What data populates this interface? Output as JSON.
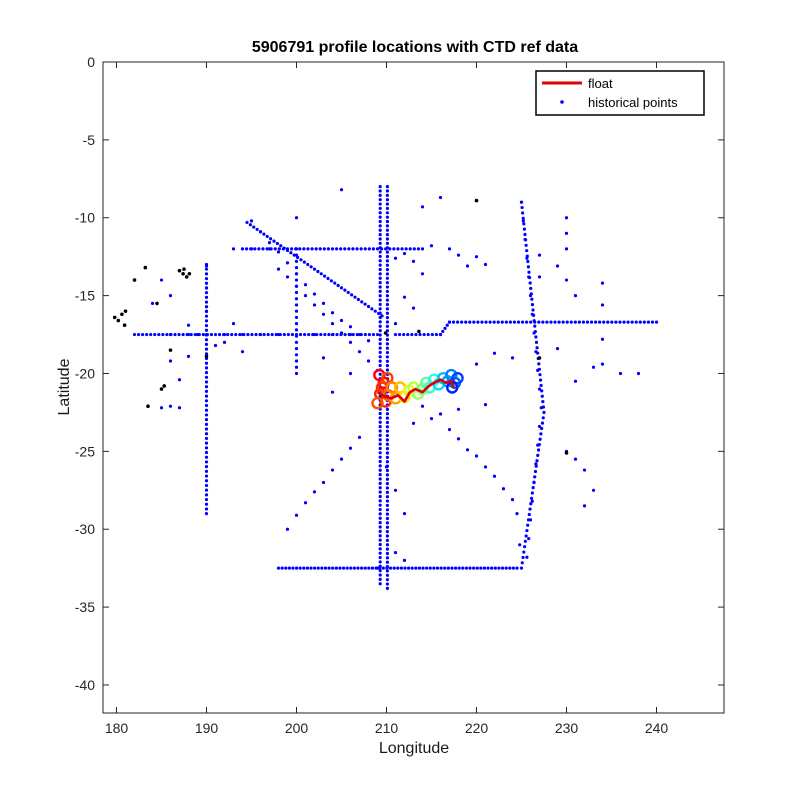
{
  "chart_data": {
    "type": "scatter",
    "title": "5906791 profile locations with CTD ref data",
    "xlabel": "Longitude",
    "ylabel": "Latitude",
    "xlim": [
      178.5,
      247.5
    ],
    "ylim": [
      -41.8,
      0
    ],
    "xticks": [
      180,
      190,
      200,
      210,
      220,
      230,
      240
    ],
    "yticks": [
      0,
      -5,
      -10,
      -15,
      -20,
      -25,
      -30,
      -35,
      -40
    ],
    "legend_position": "top-right",
    "grid": false,
    "colors": {
      "float": "#e00000",
      "historical": "#0000ff",
      "coast": "#000000",
      "axes": "#262626"
    },
    "legend": [
      {
        "label": "float",
        "style": "line",
        "color": "#e00000"
      },
      {
        "label": "historical points",
        "style": "dots",
        "color": "#0000ff"
      }
    ],
    "float_track": [
      [
        209.0,
        -21.2
      ],
      [
        209.8,
        -21.5
      ],
      [
        210.5,
        -21.6
      ],
      [
        211.3,
        -21.4
      ],
      [
        212.0,
        -21.8
      ],
      [
        212.6,
        -21.2
      ],
      [
        213.2,
        -21.0
      ],
      [
        214.0,
        -21.2
      ],
      [
        214.7,
        -20.8
      ],
      [
        215.3,
        -20.6
      ],
      [
        216.0,
        -20.4
      ],
      [
        216.6,
        -20.6
      ],
      [
        217.2,
        -20.5
      ],
      [
        217.5,
        -20.9
      ]
    ],
    "float_profiles": [
      {
        "x": 209.2,
        "y": -20.1,
        "c": "#ff0000"
      },
      {
        "x": 209.7,
        "y": -20.6,
        "c": "#ff0000"
      },
      {
        "x": 209.3,
        "y": -21.3,
        "c": "#ff2000"
      },
      {
        "x": 209.9,
        "y": -21.8,
        "c": "#ff2000"
      },
      {
        "x": 209.5,
        "y": -20.9,
        "c": "#ff3000"
      },
      {
        "x": 210.1,
        "y": -20.3,
        "c": "#ff4000"
      },
      {
        "x": 209.0,
        "y": -21.9,
        "c": "#ff5000"
      },
      {
        "x": 210.2,
        "y": -21.4,
        "c": "#ff6000"
      },
      {
        "x": 210.6,
        "y": -20.9,
        "c": "#ff8000"
      },
      {
        "x": 211.0,
        "y": -21.6,
        "c": "#ffa000"
      },
      {
        "x": 211.5,
        "y": -20.9,
        "c": "#ffc000"
      },
      {
        "x": 212.0,
        "y": -21.5,
        "c": "#ffe000"
      },
      {
        "x": 212.5,
        "y": -21.1,
        "c": "#e0ff20"
      },
      {
        "x": 213.0,
        "y": -20.9,
        "c": "#c0ff40"
      },
      {
        "x": 213.5,
        "y": -21.3,
        "c": "#a0ff60"
      },
      {
        "x": 214.0,
        "y": -21.0,
        "c": "#80ff80"
      },
      {
        "x": 214.4,
        "y": -20.6,
        "c": "#60ffa0"
      },
      {
        "x": 214.8,
        "y": -20.9,
        "c": "#40ffc0"
      },
      {
        "x": 215.3,
        "y": -20.4,
        "c": "#20ffe0"
      },
      {
        "x": 215.8,
        "y": -20.7,
        "c": "#00e0ff"
      },
      {
        "x": 216.3,
        "y": -20.3,
        "c": "#00c0ff"
      },
      {
        "x": 216.8,
        "y": -20.5,
        "c": "#00a0ff"
      },
      {
        "x": 217.2,
        "y": -20.1,
        "c": "#0080ff"
      },
      {
        "x": 217.6,
        "y": -20.6,
        "c": "#0060ff"
      },
      {
        "x": 217.9,
        "y": -20.3,
        "c": "#0040ff"
      },
      {
        "x": 217.3,
        "y": -20.9,
        "c": "#0020ff"
      }
    ],
    "historical_points": [
      [
        205,
        -8.2
      ],
      [
        220,
        -8.9
      ],
      [
        216,
        -8.7
      ],
      [
        214,
        -9.3
      ],
      [
        230,
        -10
      ],
      [
        200,
        -10
      ],
      [
        198,
        -13.3
      ],
      [
        199,
        -13.8
      ],
      [
        200,
        -14.4
      ],
      [
        201,
        -15.0
      ],
      [
        202,
        -15.6
      ],
      [
        203,
        -16.2
      ],
      [
        204,
        -16.8
      ],
      [
        205,
        -17.4
      ],
      [
        206,
        -18.0
      ],
      [
        207,
        -18.6
      ],
      [
        208,
        -19.2
      ],
      [
        209,
        -19.8
      ],
      [
        195,
        -10.2
      ],
      [
        196,
        -10.9
      ],
      [
        197,
        -11.6
      ],
      [
        198,
        -12.2
      ],
      [
        199,
        -12.9
      ],
      [
        200,
        -13.6
      ],
      [
        201,
        -14.3
      ],
      [
        202,
        -14.9
      ],
      [
        203,
        -15.5
      ],
      [
        204,
        -16.1
      ],
      [
        205,
        -16.6
      ],
      [
        206,
        -17.0
      ],
      [
        207,
        -17.5
      ],
      [
        208,
        -17.9
      ],
      [
        211,
        -12.6
      ],
      [
        212,
        -12.3
      ],
      [
        213,
        -12.8
      ],
      [
        214,
        -13.6
      ],
      [
        215,
        -11.8
      ],
      [
        212,
        -15.1
      ],
      [
        213,
        -15.8
      ],
      [
        211,
        -16.8
      ],
      [
        217,
        -12.0
      ],
      [
        218,
        -12.4
      ],
      [
        219,
        -13.1
      ],
      [
        225,
        -9.0
      ],
      [
        225.2,
        -10.2
      ],
      [
        225.4,
        -11.4
      ],
      [
        225.6,
        -12.6
      ],
      [
        225.8,
        -13.8
      ],
      [
        226.0,
        -15.0
      ],
      [
        226.2,
        -16.2
      ],
      [
        226.4,
        -17.4
      ],
      [
        226.6,
        -18.6
      ],
      [
        226.8,
        -19.8
      ],
      [
        227.0,
        -21.0
      ],
      [
        227.2,
        -22.2
      ],
      [
        227.0,
        -23.4
      ],
      [
        226.8,
        -24.6
      ],
      [
        226.6,
        -25.8
      ],
      [
        226.4,
        -27.0
      ],
      [
        226.2,
        -28.2
      ],
      [
        226.0,
        -29.4
      ],
      [
        225.8,
        -30.6
      ],
      [
        225.6,
        -31.8
      ],
      [
        230,
        -11.0
      ],
      [
        230,
        -12.0
      ],
      [
        229,
        -13.1
      ],
      [
        230,
        -14.0
      ],
      [
        231,
        -15.0
      ],
      [
        234,
        -14.2
      ],
      [
        234,
        -15.6
      ],
      [
        234,
        -17.8
      ],
      [
        234,
        -19.4
      ],
      [
        236,
        -20.0
      ],
      [
        238,
        -20.0
      ],
      [
        233,
        -19.6
      ],
      [
        220,
        -12.5
      ],
      [
        221,
        -13.0
      ],
      [
        227,
        -12.4
      ],
      [
        227,
        -13.8
      ],
      [
        229,
        -18.4
      ],
      [
        231,
        -20.5
      ],
      [
        224,
        -19.0
      ],
      [
        222,
        -18.7
      ],
      [
        220,
        -19.4
      ],
      [
        221,
        -22.0
      ],
      [
        218,
        -22.3
      ],
      [
        216,
        -22.6
      ],
      [
        215,
        -22.9
      ],
      [
        214,
        -22.1
      ],
      [
        213,
        -23.2
      ],
      [
        217,
        -23.6
      ],
      [
        218,
        -24.2
      ],
      [
        219,
        -24.9
      ],
      [
        220,
        -25.3
      ],
      [
        221,
        -26.0
      ],
      [
        222,
        -26.6
      ],
      [
        223,
        -27.4
      ],
      [
        224,
        -28.1
      ],
      [
        224.5,
        -29.0
      ],
      [
        224.8,
        -31.0
      ],
      [
        230,
        -25.0
      ],
      [
        231,
        -25.5
      ],
      [
        232,
        -26.2
      ],
      [
        233,
        -27.5
      ],
      [
        232,
        -28.5
      ],
      [
        207,
        -24.1
      ],
      [
        206,
        -24.8
      ],
      [
        205,
        -25.5
      ],
      [
        204,
        -26.2
      ],
      [
        203,
        -27.0
      ],
      [
        202,
        -27.6
      ],
      [
        201,
        -28.3
      ],
      [
        200,
        -29.1
      ],
      [
        199,
        -30.0
      ],
      [
        210,
        -26.0
      ],
      [
        211,
        -27.5
      ],
      [
        212,
        -29.0
      ],
      [
        211,
        -31.5
      ],
      [
        209,
        -32.5
      ],
      [
        212,
        -32.0
      ],
      [
        190,
        -13.1
      ],
      [
        190,
        -14.5
      ],
      [
        190,
        -16.0
      ],
      [
        190,
        -17.5
      ],
      [
        188,
        -17.5
      ],
      [
        186,
        -17.5
      ],
      [
        192,
        -17.5
      ],
      [
        194,
        -17.5
      ],
      [
        196,
        -17.5
      ],
      [
        198,
        -17.5
      ],
      [
        202,
        -17.5
      ],
      [
        204,
        -17.5
      ],
      [
        206,
        -17.5
      ],
      [
        193,
        -16.8
      ],
      [
        192,
        -18.0
      ],
      [
        194,
        -18.6
      ],
      [
        186,
        -15.0
      ],
      [
        184,
        -15.5
      ],
      [
        186,
        -19.2
      ],
      [
        187,
        -20.4
      ],
      [
        186,
        -22.1
      ],
      [
        185,
        -22.2
      ],
      [
        187,
        -22.2
      ],
      [
        188,
        -16.9
      ],
      [
        191,
        -18.2
      ],
      [
        193,
        -12.0
      ],
      [
        195,
        -12.0
      ],
      [
        197,
        -12.0
      ],
      [
        185,
        -14.0
      ],
      [
        189,
        -17.5
      ],
      [
        204,
        -21.2
      ],
      [
        206,
        -20.0
      ],
      [
        203,
        -19.0
      ],
      [
        188,
        -18.9
      ]
    ],
    "coast_points": [
      [
        180.6,
        -16.2
      ],
      [
        180.2,
        -16.6
      ],
      [
        180.9,
        -16.9
      ],
      [
        179.8,
        -16.4
      ],
      [
        181.0,
        -16.0
      ],
      [
        182.0,
        -14.0
      ],
      [
        183.2,
        -13.2
      ],
      [
        184.5,
        -15.5
      ],
      [
        185.0,
        -21.0
      ],
      [
        185.3,
        -20.8
      ],
      [
        187.0,
        -13.4
      ],
      [
        187.4,
        -13.6
      ],
      [
        187.8,
        -13.8
      ],
      [
        188.1,
        -13.6
      ],
      [
        187.5,
        -13.3
      ],
      [
        186.0,
        -18.5
      ],
      [
        190.0,
        -18.9
      ],
      [
        183.5,
        -22.1
      ],
      [
        220.0,
        -8.9
      ],
      [
        230.0,
        -25.1
      ],
      [
        213.6,
        -17.3
      ],
      [
        209.9,
        -17.4
      ],
      [
        227.0,
        -19.0
      ]
    ]
  }
}
